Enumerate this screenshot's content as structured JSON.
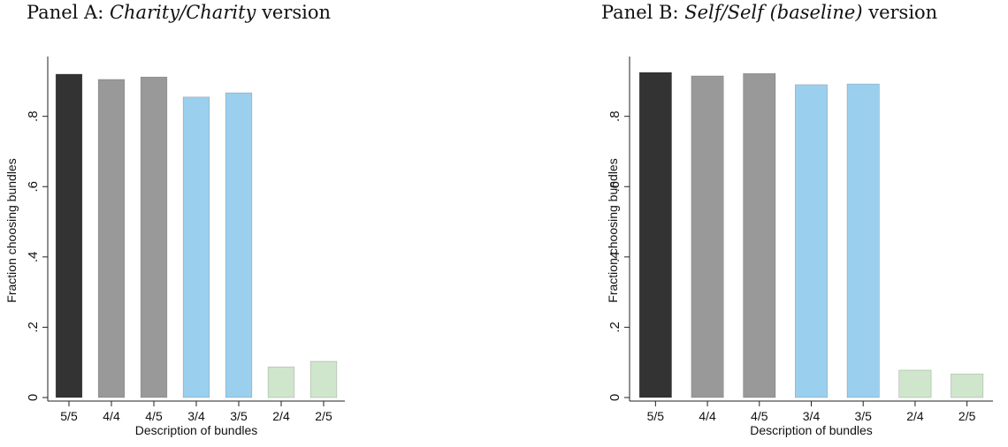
{
  "panels": [
    {
      "title_prefix": "Panel A: ",
      "title_emph": "Charity/Charity",
      "title_suffix": " version"
    },
    {
      "title_prefix": "Panel B: ",
      "title_emph": "Self/Self (baseline)",
      "title_suffix": " version"
    }
  ],
  "chart_data": [
    {
      "type": "bar",
      "categories": [
        "5/5",
        "4/4",
        "4/5",
        "3/4",
        "3/5",
        "2/4",
        "2/5"
      ],
      "values": [
        0.92,
        0.905,
        0.912,
        0.855,
        0.867,
        0.087,
        0.103
      ],
      "bar_colors": [
        "#333333",
        "#999999",
        "#999999",
        "#9bcfee",
        "#9bcfee",
        "#cfe6cc",
        "#cfe6cc"
      ],
      "xlabel": "Description of bundles",
      "ylabel": "Fraction choosing bundles",
      "ylim": [
        0,
        0.95
      ],
      "yticks": [
        0,
        0.2,
        0.4,
        0.6,
        0.8
      ],
      "ytick_labels": [
        "0",
        ".2",
        ".4",
        ".6",
        ".8"
      ],
      "grid": false
    },
    {
      "type": "bar",
      "categories": [
        "5/5",
        "4/4",
        "4/5",
        "3/4",
        "3/5",
        "2/4",
        "2/5"
      ],
      "values": [
        0.925,
        0.915,
        0.922,
        0.89,
        0.892,
        0.078,
        0.067
      ],
      "bar_colors": [
        "#333333",
        "#999999",
        "#999999",
        "#9bcfee",
        "#9bcfee",
        "#cfe6cc",
        "#cfe6cc"
      ],
      "xlabel": "Description of bundles",
      "ylabel": "Fraction choosing bundles",
      "ylim": [
        0,
        0.95
      ],
      "yticks": [
        0,
        0.2,
        0.4,
        0.6,
        0.8
      ],
      "ytick_labels": [
        "0",
        ".2",
        ".4",
        ".6",
        ".8"
      ],
      "grid": false
    }
  ]
}
